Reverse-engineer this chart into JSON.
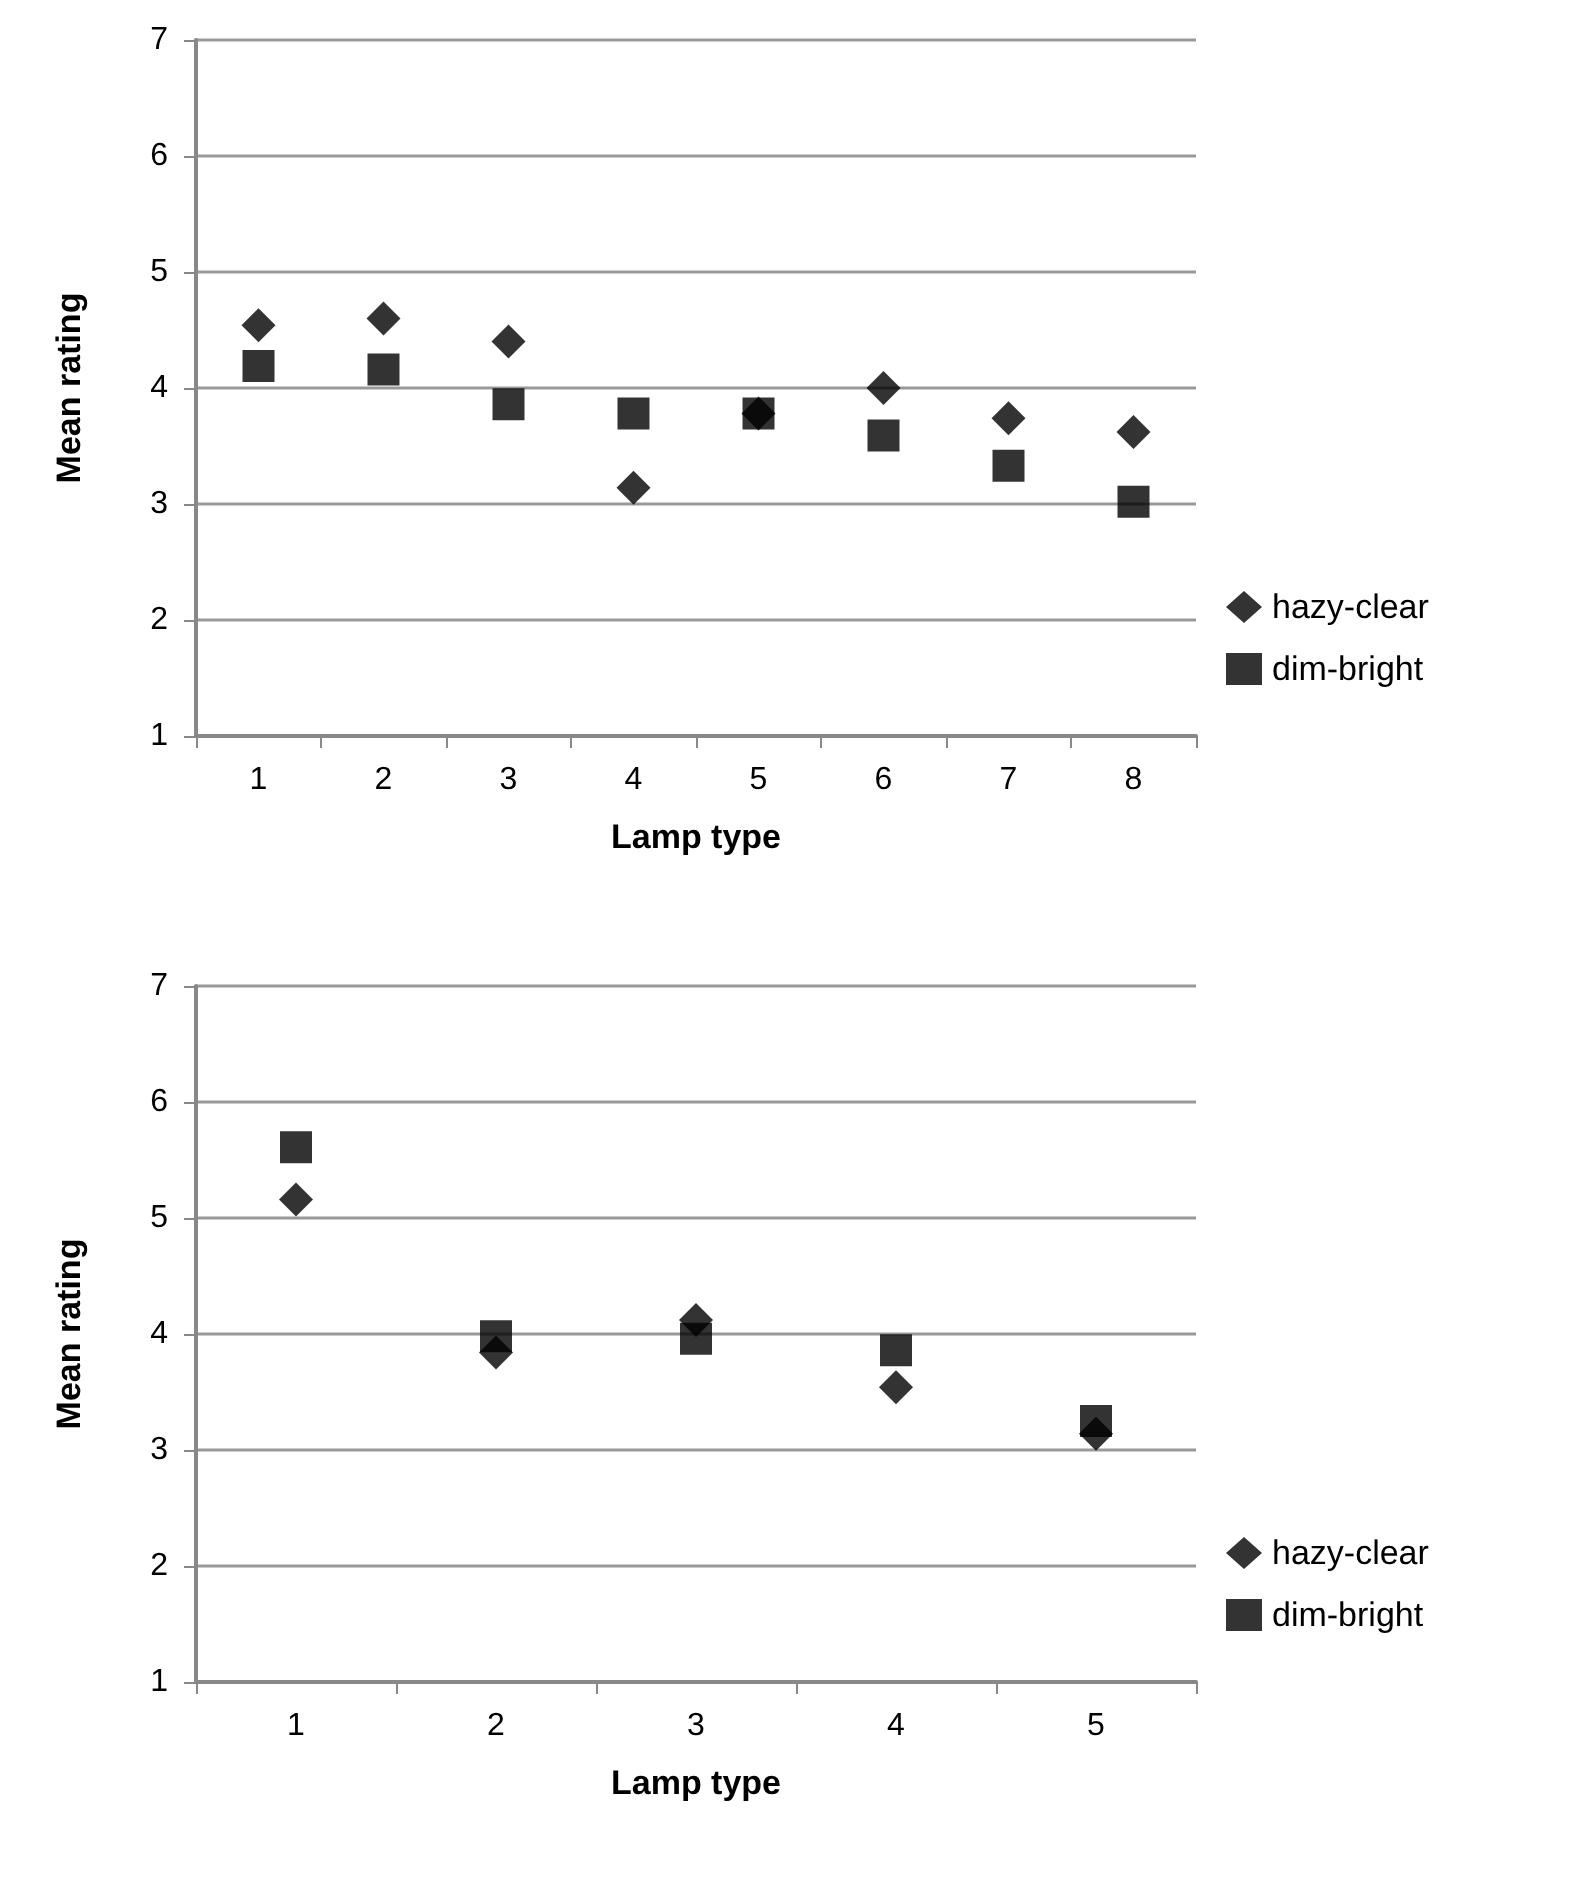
{
  "chart_data": [
    {
      "type": "scatter",
      "xlabel": "Lamp type",
      "ylabel": "Mean rating",
      "categories": [
        "1",
        "2",
        "3",
        "4",
        "5",
        "6",
        "7",
        "8"
      ],
      "ylim": [
        1,
        7
      ],
      "yticks": [
        1,
        2,
        3,
        4,
        5,
        6,
        7
      ],
      "grid": "y",
      "legend": "right",
      "series": [
        {
          "name": "hazy-clear",
          "color": "#000000",
          "marker": "diamond",
          "values": [
            4.54,
            4.6,
            4.4,
            3.14,
            3.78,
            4.0,
            3.74,
            3.62
          ]
        },
        {
          "name": "dim-bright",
          "color": "#000000",
          "marker": "square",
          "values": [
            4.19,
            4.16,
            3.86,
            3.78,
            3.78,
            3.59,
            3.33,
            3.02
          ]
        }
      ]
    },
    {
      "type": "scatter",
      "xlabel": "Lamp type",
      "ylabel": "Mean rating",
      "categories": [
        "1",
        "2",
        "3",
        "4",
        "5"
      ],
      "ylim": [
        1,
        7
      ],
      "yticks": [
        1,
        2,
        3,
        4,
        5,
        6,
        7
      ],
      "grid": "y",
      "legend": "right",
      "series": [
        {
          "name": "hazy-clear",
          "color": "#000000",
          "marker": "diamond",
          "values": [
            5.16,
            3.84,
            4.12,
            3.54,
            3.14
          ]
        },
        {
          "name": "dim-bright",
          "color": "#000000",
          "marker": "square",
          "values": [
            5.61,
            3.98,
            3.96,
            3.86,
            3.25
          ]
        }
      ]
    }
  ]
}
